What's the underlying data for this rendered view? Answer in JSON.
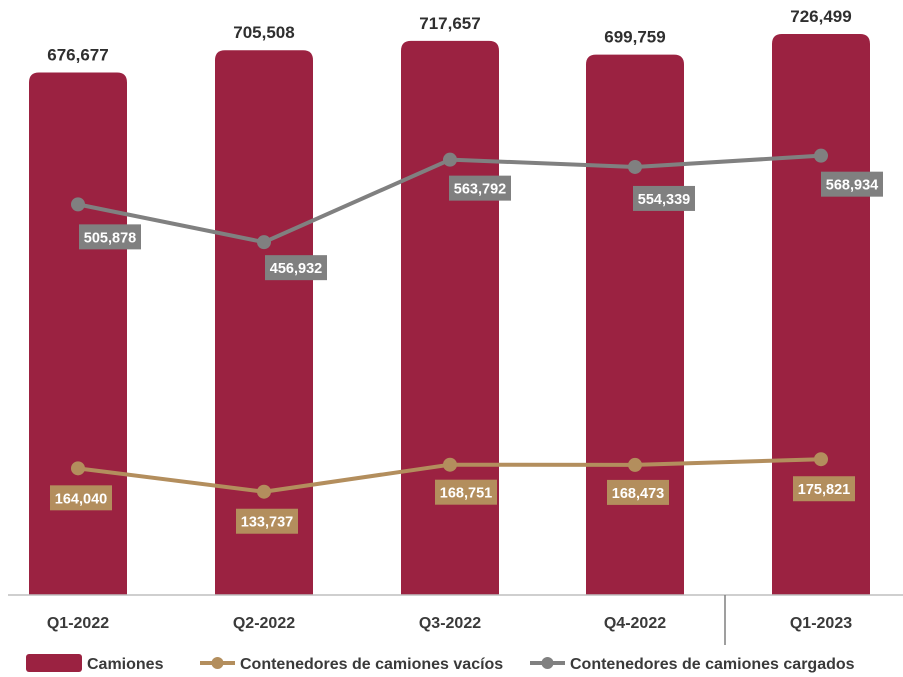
{
  "chart_data": {
    "type": "bar",
    "categories": [
      "Q1-2022",
      "Q2-2022",
      "Q3-2022",
      "Q4-2022",
      "Q1-2023"
    ],
    "series": [
      {
        "name": "Camiones",
        "type": "bar",
        "color": "#9b2241",
        "values": [
          676677,
          705508,
          717657,
          699759,
          726499
        ],
        "labels": [
          "676,677",
          "705,508",
          "717,657",
          "699,759",
          "726,499"
        ]
      },
      {
        "name": "Contenedores de camiones vacíos",
        "type": "line",
        "color": "#b38e5d",
        "values": [
          164040,
          133737,
          168751,
          168473,
          175821
        ],
        "labels": [
          "164,040",
          "133,737",
          "168,751",
          "168,473",
          "175,821"
        ]
      },
      {
        "name": "Contenedores de camiones cargados",
        "type": "line",
        "color": "#808080",
        "values": [
          505878,
          456932,
          563792,
          554339,
          568934
        ],
        "labels": [
          "505,878",
          "456,932",
          "563,792",
          "554,339",
          "568,934"
        ]
      }
    ],
    "ylim": [
      0,
      800000
    ],
    "grid": false,
    "legend": "bottom"
  }
}
